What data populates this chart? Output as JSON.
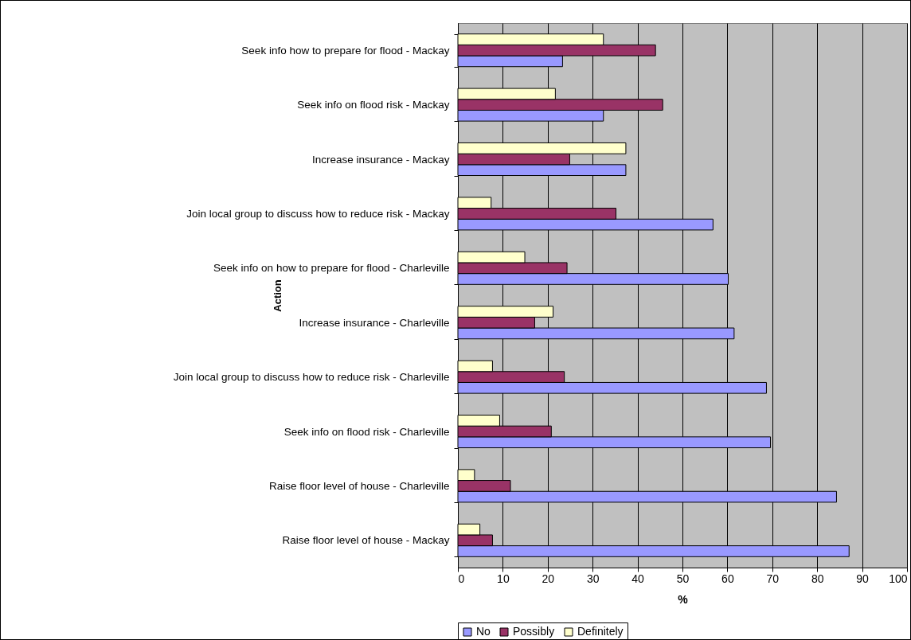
{
  "chart_data": {
    "type": "bar",
    "orientation": "horizontal",
    "xlabel": "%",
    "ylabel": "Action",
    "categories": [
      "Seek info how to prepare for flood - Mackay",
      "Seek info on flood risk - Mackay",
      "Increase insurance - Mackay",
      "Join local group to discuss how to reduce risk - Mackay",
      "Seek info on how to prepare for flood - Charleville",
      "Increase insurance - Charleville",
      "Join local group to discuss how to reduce risk - Charleville",
      "Seek info on flood risk - Charleville",
      "Raise floor level of house - Charleville",
      "Raise floor level of house - Mackay"
    ],
    "series": [
      {
        "name": "No",
        "color": "#9999ff",
        "values": [
          23.3,
          32.4,
          37.4,
          56.8,
          60.2,
          61.5,
          68.7,
          69.6,
          84.3,
          87.1
        ]
      },
      {
        "name": "Possibly",
        "color": "#993366",
        "values": [
          44.0,
          45.6,
          24.9,
          35.2,
          24.3,
          17.1,
          23.7,
          20.8,
          11.7,
          7.7
        ]
      },
      {
        "name": "Definitely",
        "color": "#ffffcc",
        "values": [
          32.4,
          21.7,
          37.4,
          7.4,
          14.9,
          21.2,
          7.7,
          9.3,
          3.7,
          4.9
        ]
      }
    ],
    "xlim": [
      0,
      100
    ],
    "xticks": [
      0,
      10,
      20,
      30,
      40,
      50,
      60,
      70,
      80,
      90,
      100
    ],
    "grid": "x",
    "legend": "bottom"
  }
}
